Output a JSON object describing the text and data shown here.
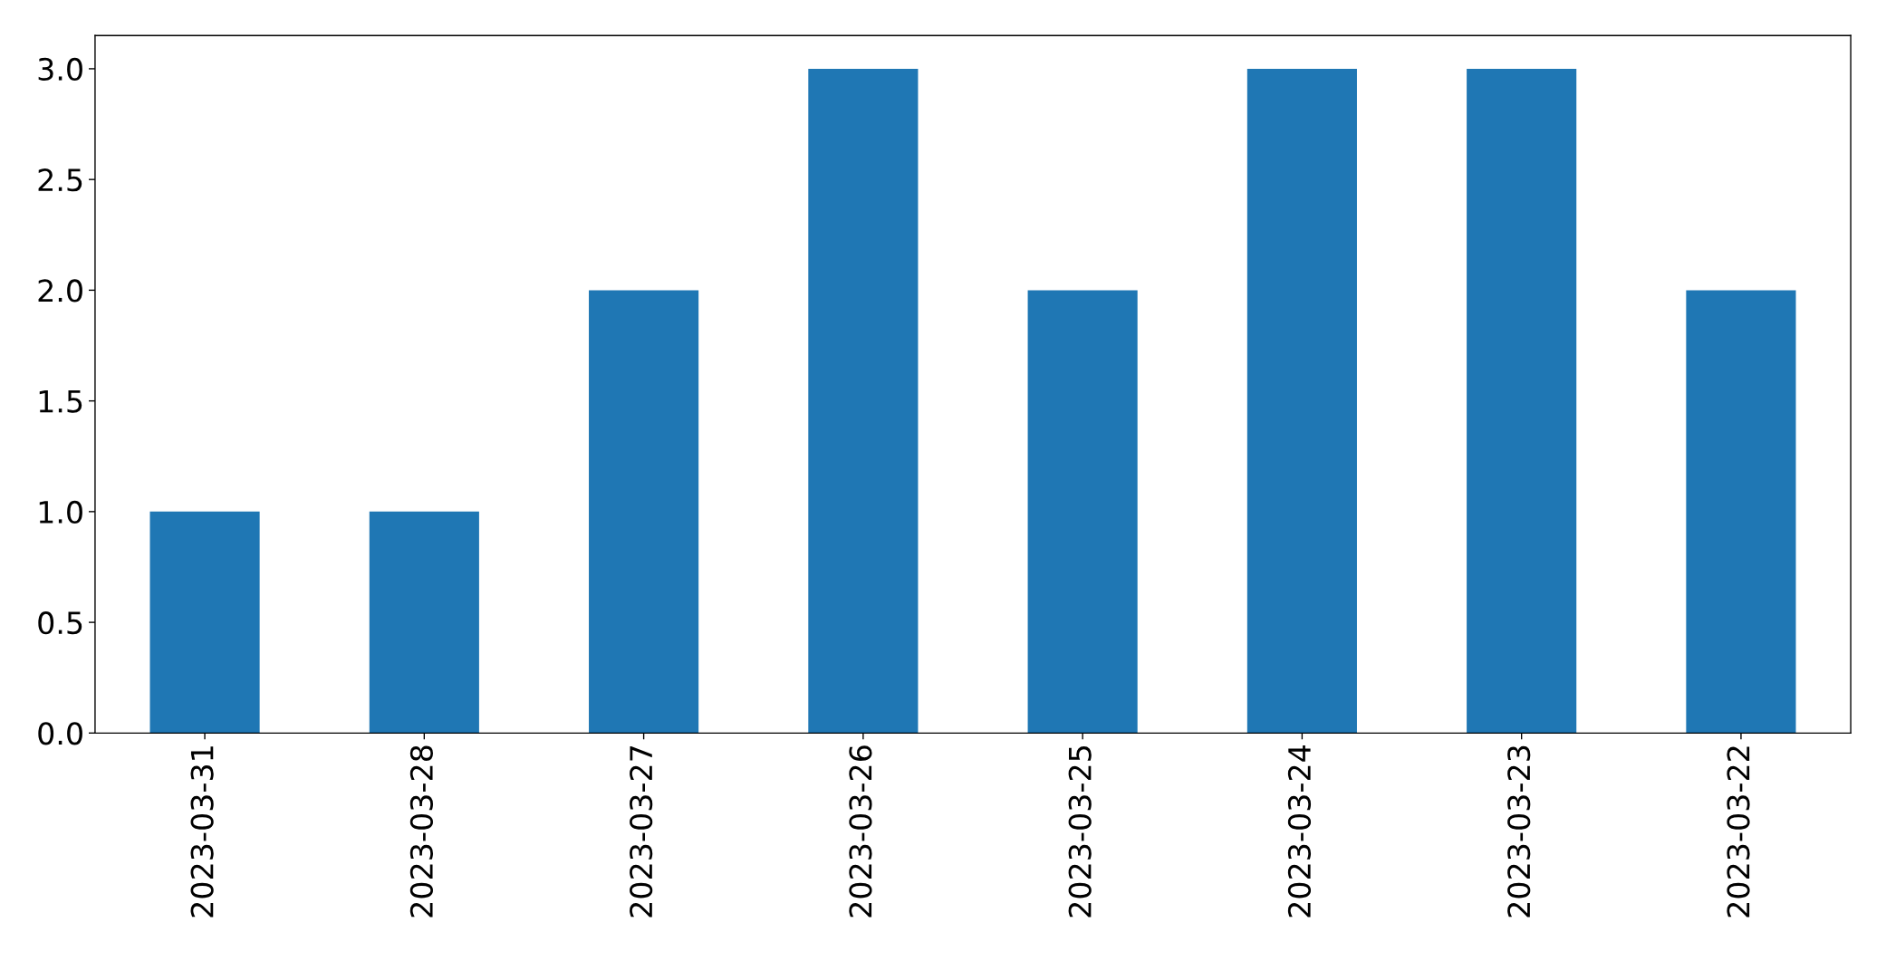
{
  "chart_data": {
    "type": "bar",
    "categories": [
      "2023-03-31",
      "2023-03-28",
      "2023-03-27",
      "2023-03-26",
      "2023-03-25",
      "2023-03-24",
      "2023-03-23",
      "2023-03-22"
    ],
    "values": [
      1,
      1,
      2,
      3,
      2,
      3,
      3,
      2
    ],
    "color": "#1f77b4",
    "ylim": [
      0,
      3.15
    ],
    "yticks": [
      {
        "value": 0,
        "label": "0.0"
      },
      0.5,
      {
        "value": 1,
        "label": "1.0"
      },
      1.5,
      {
        "value": 2,
        "label": "2.0"
      },
      2.5,
      {
        "value": 3,
        "label": "3.0"
      }
    ],
    "grid": false,
    "legend": false
  }
}
